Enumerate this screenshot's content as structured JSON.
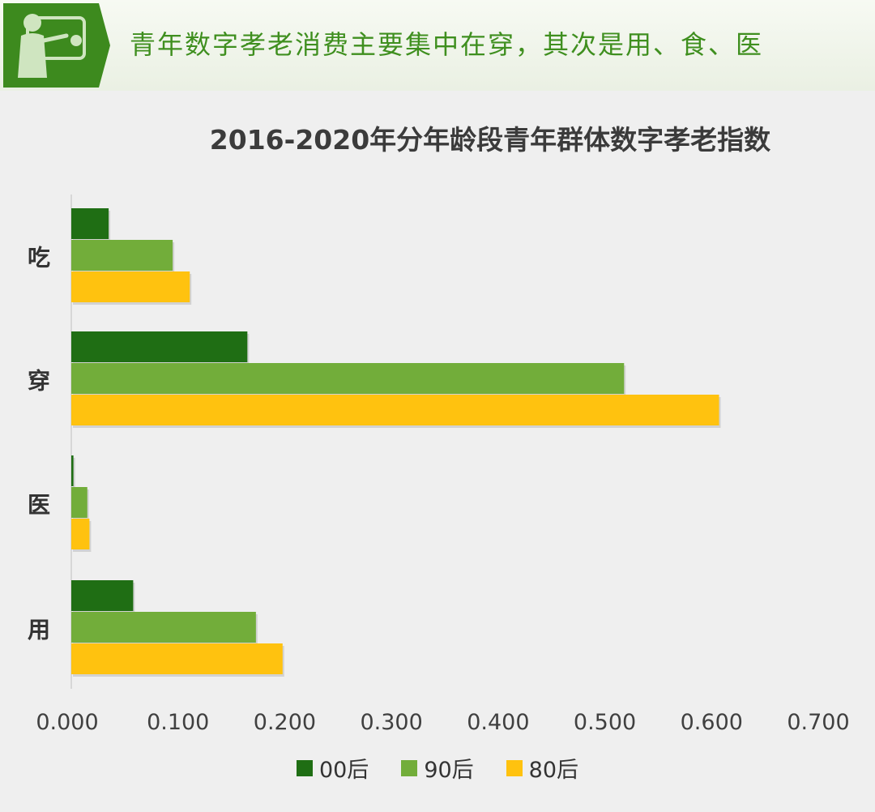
{
  "banner": {
    "title": "青年数字孝老消费主要集中在穿，其次是用、食、医",
    "badge_icon": "person-presenting-board-icon"
  },
  "colors": {
    "00后": "#1f6e14",
    "90后": "#72ad3a",
    "80后": "#ffc20f",
    "banner_green": "#3f8f1f"
  },
  "chart_data": {
    "type": "bar",
    "orientation": "horizontal",
    "title": "2016-2020年分年龄段青年群体数字孝老指数",
    "categories": [
      "吃",
      "穿",
      "医",
      "用"
    ],
    "series": [
      {
        "name": "00后",
        "values": [
          0.035,
          0.165,
          0.002,
          0.058
        ]
      },
      {
        "name": "90后",
        "values": [
          0.095,
          0.518,
          0.015,
          0.173
        ]
      },
      {
        "name": "80后",
        "values": [
          0.111,
          0.607,
          0.017,
          0.198
        ]
      }
    ],
    "xlim": [
      0,
      0.7
    ],
    "x_ticks": [
      "0.000",
      "0.100",
      "0.200",
      "0.300",
      "0.400",
      "0.500",
      "0.600",
      "0.700"
    ],
    "grid": false,
    "legend_position": "bottom"
  }
}
